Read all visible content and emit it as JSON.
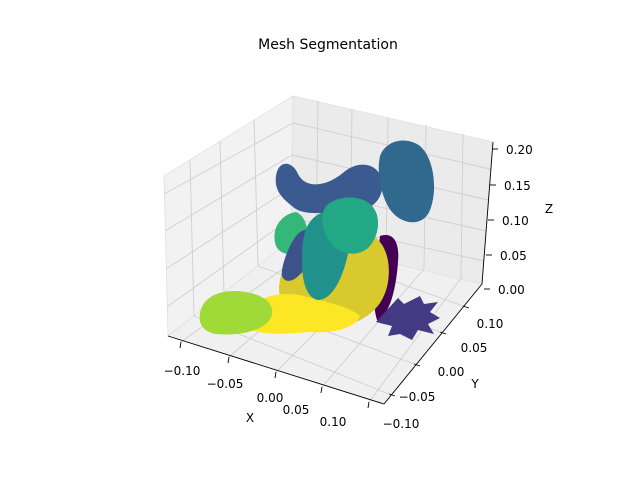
{
  "chart_data": {
    "type": "scatter",
    "projection": "3d",
    "title": "Mesh Segmentation",
    "xlabel": "X",
    "ylabel": "Y",
    "zlabel": "Z",
    "grid": true,
    "colormap": "viridis",
    "x_ticks": [
      "−0.10",
      "−0.05",
      "0.00",
      "0.05",
      "0.10"
    ],
    "y_ticks": [
      "−0.10",
      "−0.05",
      "0.00",
      "0.05",
      "0.10"
    ],
    "z_ticks": [
      "0.00",
      "0.05",
      "0.10",
      "0.15",
      "0.20"
    ],
    "segment_colors": {
      "segment_0": "#440154",
      "segment_1": "#3b528b",
      "segment_2": "#31688e",
      "segment_3": "#21918c",
      "segment_4": "#35b779",
      "segment_5": "#a0da39",
      "segment_6": "#fde725"
    }
  }
}
